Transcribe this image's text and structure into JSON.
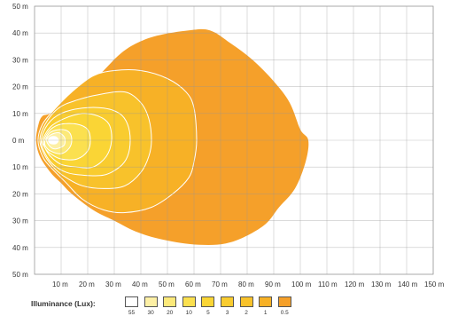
{
  "chart_data": {
    "type": "contour",
    "xlabel": "",
    "ylabel": "",
    "xlim": [
      0,
      150
    ],
    "ylim": [
      -50,
      50
    ],
    "x_unit": "m",
    "y_unit": "m",
    "grid": true,
    "x_ticks": [
      10,
      20,
      30,
      40,
      50,
      60,
      70,
      80,
      90,
      100,
      110,
      120,
      130,
      140,
      150
    ],
    "x_tick_labels": [
      "10 m",
      "20 m",
      "30 m",
      "40 m",
      "50 m",
      "60 m",
      "70 m",
      "80 m",
      "90 m",
      "100 m",
      "110 m",
      "120 m",
      "130 m",
      "140 m",
      "150 m"
    ],
    "y_ticks": [
      50,
      40,
      30,
      20,
      10,
      0,
      -10,
      -20,
      -30,
      -40,
      -50
    ],
    "y_tick_labels": [
      "50 m",
      "40 m",
      "30 m",
      "20 m",
      "10 m",
      "0 m",
      "10 m",
      "20 m",
      "30 m",
      "40 m",
      "50 m"
    ],
    "contours": [
      {
        "lux": "0.5",
        "color": "#f5a02a",
        "points": [
          [
            0.6,
            0
          ],
          [
            1.5,
            6
          ],
          [
            3,
            9
          ],
          [
            6,
            10
          ],
          [
            14,
            14
          ],
          [
            20,
            20
          ],
          [
            26,
            26
          ],
          [
            32,
            32
          ],
          [
            38,
            36
          ],
          [
            46,
            39
          ],
          [
            58,
            41
          ],
          [
            66,
            41
          ],
          [
            74,
            36
          ],
          [
            82,
            30
          ],
          [
            90,
            22
          ],
          [
            96,
            14
          ],
          [
            100,
            4
          ],
          [
            103,
            0
          ],
          [
            102,
            -8
          ],
          [
            98,
            -18
          ],
          [
            92,
            -25
          ],
          [
            86,
            -32
          ],
          [
            74,
            -38
          ],
          [
            62,
            -39
          ],
          [
            48,
            -37
          ],
          [
            38,
            -34
          ],
          [
            30,
            -30
          ],
          [
            22,
            -26
          ],
          [
            14,
            -20
          ],
          [
            10,
            -16
          ],
          [
            6,
            -12
          ],
          [
            2,
            -6
          ]
        ]
      },
      {
        "lux": "1",
        "color": "#f7b126",
        "points": [
          [
            1.3,
            0
          ],
          [
            3,
            6
          ],
          [
            7,
            11
          ],
          [
            14,
            18
          ],
          [
            22,
            24
          ],
          [
            30,
            26
          ],
          [
            40,
            26
          ],
          [
            50,
            23
          ],
          [
            57,
            18
          ],
          [
            60,
            12
          ],
          [
            61,
            0
          ],
          [
            60,
            -8
          ],
          [
            58,
            -14
          ],
          [
            52,
            -20
          ],
          [
            44,
            -25
          ],
          [
            34,
            -27
          ],
          [
            26,
            -26
          ],
          [
            18,
            -22
          ],
          [
            12,
            -16
          ],
          [
            6,
            -10
          ],
          [
            3,
            -6
          ]
        ]
      },
      {
        "lux": "2",
        "color": "#f8c22b",
        "points": [
          [
            2,
            0
          ],
          [
            4,
            6
          ],
          [
            9,
            12
          ],
          [
            16,
            15
          ],
          [
            24,
            17
          ],
          [
            34,
            18
          ],
          [
            40,
            14
          ],
          [
            43,
            8
          ],
          [
            44,
            0
          ],
          [
            43,
            -6
          ],
          [
            40,
            -12
          ],
          [
            34,
            -17
          ],
          [
            26,
            -18
          ],
          [
            18,
            -17
          ],
          [
            12,
            -14
          ],
          [
            8,
            -11
          ],
          [
            4,
            -6
          ]
        ]
      },
      {
        "lux": "3",
        "color": "#f9cc2f",
        "points": [
          [
            2.5,
            0
          ],
          [
            5,
            6
          ],
          [
            10,
            10
          ],
          [
            18,
            12
          ],
          [
            26,
            12
          ],
          [
            32,
            10
          ],
          [
            35,
            6
          ],
          [
            36,
            0
          ],
          [
            35,
            -6
          ],
          [
            32,
            -10
          ],
          [
            26,
            -13
          ],
          [
            18,
            -13
          ],
          [
            12,
            -12
          ],
          [
            7,
            -9
          ],
          [
            4,
            -5
          ]
        ]
      },
      {
        "lux": "5",
        "color": "#fad535",
        "points": [
          [
            3,
            0
          ],
          [
            6,
            5
          ],
          [
            11,
            8
          ],
          [
            18,
            10
          ],
          [
            24,
            9
          ],
          [
            28,
            6
          ],
          [
            29,
            0
          ],
          [
            27,
            -6
          ],
          [
            22,
            -10
          ],
          [
            16,
            -10
          ],
          [
            10,
            -9
          ],
          [
            6,
            -6
          ],
          [
            4,
            -3
          ]
        ]
      },
      {
        "lux": "10",
        "color": "#fbe04f",
        "points": [
          [
            3.5,
            0
          ],
          [
            6,
            4
          ],
          [
            10,
            6
          ],
          [
            16,
            6
          ],
          [
            20,
            4
          ],
          [
            21,
            0
          ],
          [
            20,
            -4
          ],
          [
            16,
            -7
          ],
          [
            10,
            -7
          ],
          [
            6,
            -5
          ],
          [
            4,
            -3
          ]
        ]
      },
      {
        "lux": "20",
        "color": "#fce97a",
        "points": [
          [
            4,
            0
          ],
          [
            6,
            3
          ],
          [
            10,
            4
          ],
          [
            13,
            3
          ],
          [
            14,
            0
          ],
          [
            13,
            -3
          ],
          [
            10,
            -5
          ],
          [
            6,
            -4
          ],
          [
            4,
            -2
          ]
        ]
      },
      {
        "lux": "30",
        "color": "#fdf0a5",
        "points": [
          [
            4.5,
            0
          ],
          [
            6,
            2
          ],
          [
            9,
            2.8
          ],
          [
            11,
            1.5
          ],
          [
            11.5,
            0
          ],
          [
            11,
            -2
          ],
          [
            8,
            -3.2
          ],
          [
            6,
            -2.5
          ]
        ]
      },
      {
        "lux": "55",
        "color": "#ffffff",
        "points": [
          [
            5.2,
            0
          ],
          [
            6,
            1.2
          ],
          [
            8,
            1.3
          ],
          [
            9,
            0
          ],
          [
            8,
            -1.3
          ],
          [
            6,
            -1.2
          ]
        ]
      }
    ],
    "legend": {
      "title": "Illuminance (Lux):",
      "entries": [
        {
          "label": "55",
          "color": "#ffffff"
        },
        {
          "label": "30",
          "color": "#fdf0a5"
        },
        {
          "label": "20",
          "color": "#fce97a"
        },
        {
          "label": "10",
          "color": "#fbe04f"
        },
        {
          "label": "5",
          "color": "#fad535"
        },
        {
          "label": "3",
          "color": "#f9cc2f"
        },
        {
          "label": "2",
          "color": "#f8c22b"
        },
        {
          "label": "1",
          "color": "#f7b126"
        },
        {
          "label": "0.5",
          "color": "#f5a02a"
        }
      ]
    }
  }
}
